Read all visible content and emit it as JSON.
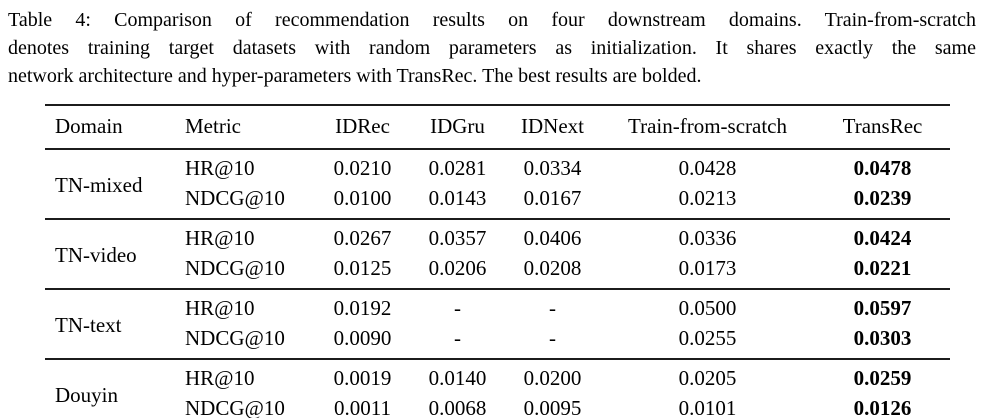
{
  "caption_lines": [
    "Table 4: Comparison of recommendation results on four downstream domains. Train-from-scratch",
    "denotes training target datasets with random parameters as initialization. It shares exactly the same",
    "network architecture and hyper-parameters with TransRec. The best results are bolded."
  ],
  "colors": {
    "background": "#ffffff",
    "text": "#000000",
    "rule": "#1c1c1c"
  },
  "table": {
    "columns": [
      "Domain",
      "Metric",
      "IDRec",
      "IDGru",
      "IDNext",
      "Train-from-scratch",
      "TransRec"
    ],
    "bold_column": "TransRec",
    "groups": [
      {
        "domain": "TN-mixed",
        "rows": [
          {
            "metric": "HR@10",
            "values": [
              "0.0210",
              "0.0281",
              "0.0334",
              "0.0428",
              "0.0478"
            ]
          },
          {
            "metric": "NDCG@10",
            "values": [
              "0.0100",
              "0.0143",
              "0.0167",
              "0.0213",
              "0.0239"
            ]
          }
        ]
      },
      {
        "domain": "TN-video",
        "rows": [
          {
            "metric": "HR@10",
            "values": [
              "0.0267",
              "0.0357",
              "0.0406",
              "0.0336",
              "0.0424"
            ]
          },
          {
            "metric": "NDCG@10",
            "values": [
              "0.0125",
              "0.0206",
              "0.0208",
              "0.0173",
              "0.0221"
            ]
          }
        ]
      },
      {
        "domain": "TN-text",
        "rows": [
          {
            "metric": "HR@10",
            "values": [
              "0.0192",
              "-",
              "-",
              "0.0500",
              "0.0597"
            ]
          },
          {
            "metric": "NDCG@10",
            "values": [
              "0.0090",
              "-",
              "-",
              "0.0255",
              "0.0303"
            ]
          }
        ]
      },
      {
        "domain": "Douyin",
        "rows": [
          {
            "metric": "HR@10",
            "values": [
              "0.0019",
              "0.0140",
              "0.0200",
              "0.0205",
              "0.0259"
            ]
          },
          {
            "metric": "NDCG@10",
            "values": [
              "0.0011",
              "0.0068",
              "0.0095",
              "0.0101",
              "0.0126"
            ]
          }
        ]
      }
    ]
  }
}
